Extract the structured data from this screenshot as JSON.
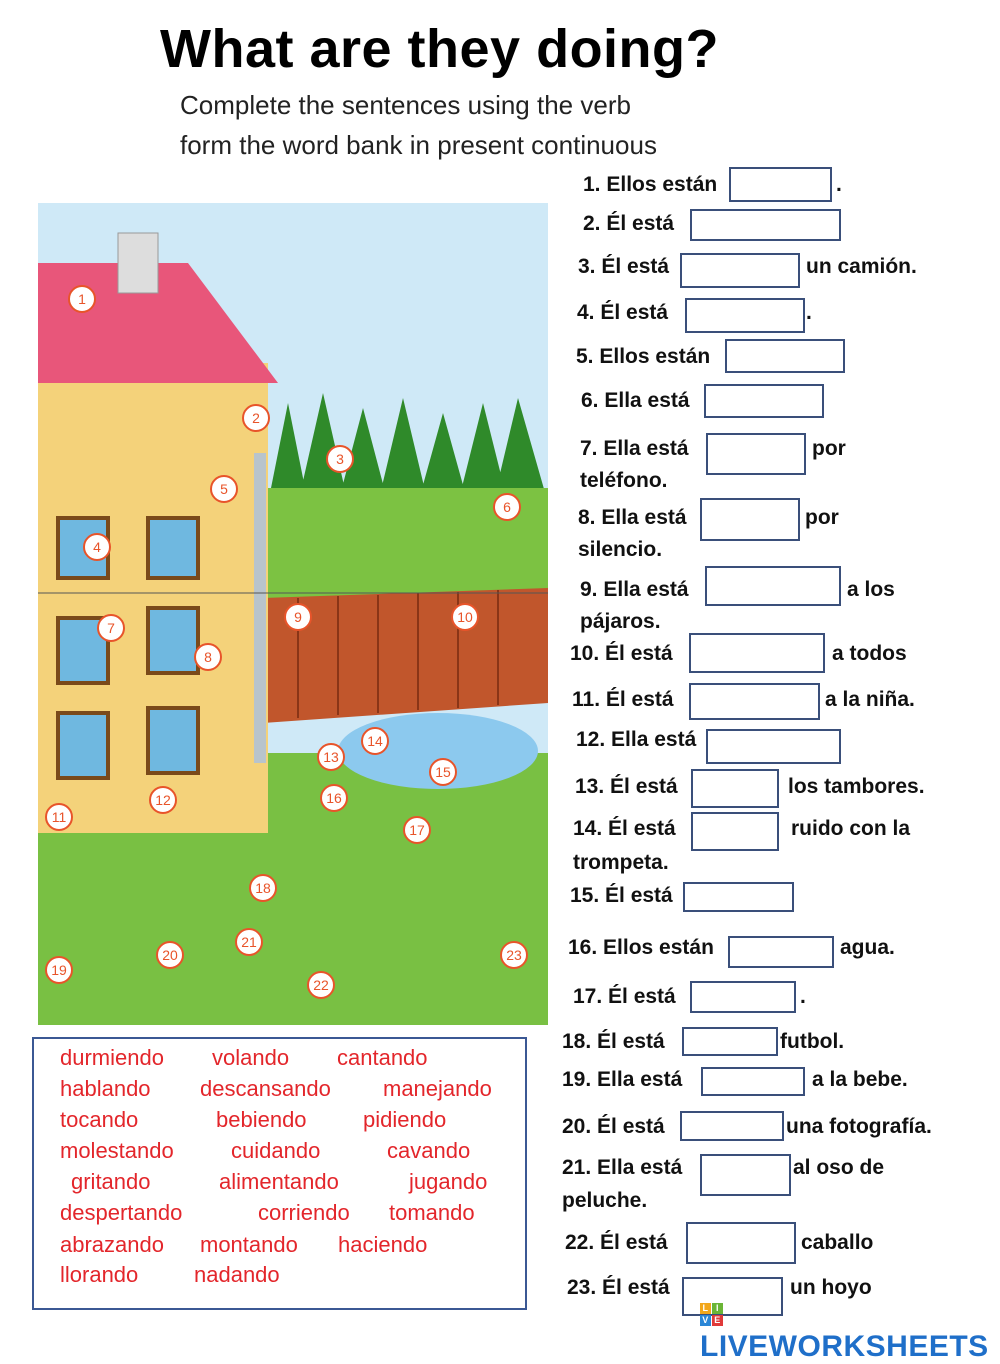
{
  "title": "What are they doing?",
  "instructions": [
    "Complete the sentences using the  verb",
    "form the word bank in present continuous"
  ],
  "sentences": [
    {
      "prefix": "1. Ellos están",
      "suffix": ".",
      "value": ""
    },
    {
      "prefix": "2. Él  está",
      "suffix": "",
      "value": ""
    },
    {
      "prefix": "3. Él está",
      "suffix": "un camión.",
      "value": ""
    },
    {
      "prefix": "4. Él  está",
      "suffix": ".",
      "value": ""
    },
    {
      "prefix": "5. Ellos  están",
      "suffix": "",
      "value": ""
    },
    {
      "prefix": "6. Ella  está",
      "suffix": "",
      "value": ""
    },
    {
      "prefix": "7. Ella  está",
      "suffix": "por",
      "cont": "teléfono.",
      "value": ""
    },
    {
      "prefix": "8. Ella  está",
      "suffix": "por",
      "cont": "silencio.",
      "value": ""
    },
    {
      "prefix": "9. Ella  está",
      "suffix": "a los",
      "cont": "pájaros.",
      "value": ""
    },
    {
      "prefix": "10. Él  está",
      "suffix": "a todos",
      "value": ""
    },
    {
      "prefix": "11. Él  está",
      "suffix": "a la niña.",
      "value": ""
    },
    {
      "prefix": "12. Ella está",
      "suffix": "",
      "value": ""
    },
    {
      "prefix": "13. Él  está",
      "suffix": "los tambores.",
      "value": ""
    },
    {
      "prefix": "14. Él  está",
      "suffix": "ruido con la",
      "cont": "trompeta.",
      "value": ""
    },
    {
      "prefix": "15. Él está",
      "suffix": "",
      "value": ""
    },
    {
      "prefix": "16. Ellos  están",
      "suffix": "agua.",
      "value": ""
    },
    {
      "prefix": "17. Él  está",
      "suffix": ".",
      "value": ""
    },
    {
      "prefix": "18. Él  está",
      "suffix": "futbol.",
      "value": ""
    },
    {
      "prefix": "19. Ella  está",
      "suffix": "a la bebe.",
      "value": ""
    },
    {
      "prefix": "20. Él  está",
      "suffix": "una fotografía.",
      "value": ""
    },
    {
      "prefix": "21. Ella  está",
      "suffix": "al oso de",
      "cont": "peluche.",
      "value": ""
    },
    {
      "prefix": "22. Él  está",
      "suffix": "caballo",
      "value": ""
    },
    {
      "prefix": "23. Él  está",
      "suffix": "un hoyo",
      "value": ""
    }
  ],
  "word_bank": [
    [
      "durmiendo",
      "volando",
      "cantando"
    ],
    [
      "hablando",
      "descansando",
      "manejando"
    ],
    [
      "tocando",
      "bebiendo",
      "pidiendo"
    ],
    [
      "molestando",
      "cuidando",
      "cavando"
    ],
    [
      "gritando",
      "alimentando",
      "jugando"
    ],
    [
      "despertando",
      "corriendo",
      "tomando"
    ],
    [
      "abrazando",
      "montando",
      "haciendo"
    ],
    [
      "llorando",
      "nadando"
    ]
  ],
  "picture_numbers": [
    "1",
    "2",
    "3",
    "4",
    "5",
    "6",
    "7",
    "8",
    "9",
    "10",
    "11",
    "12",
    "13",
    "14",
    "15",
    "16",
    "17",
    "18",
    "19",
    "20",
    "21",
    "22",
    "23"
  ],
  "logo": {
    "text": "LIVEWORKSHEETS",
    "badge": [
      "L",
      "I",
      "V",
      "E"
    ]
  },
  "colors": {
    "word_bank_text": "#e3262b",
    "answer_box_border": "#3a4f7a",
    "logo": "#1f6fc9"
  }
}
